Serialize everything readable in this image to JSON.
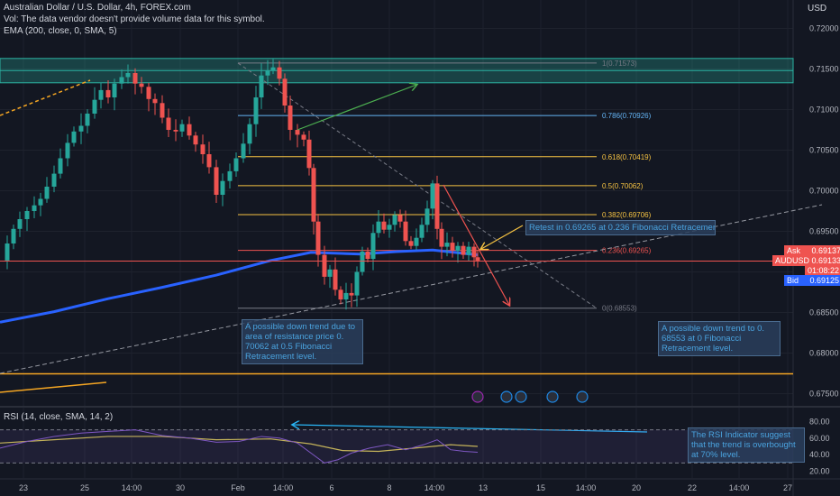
{
  "header": {
    "title": "Australian Dollar / U.S. Dollar, 4h, FOREX.com",
    "volume_note": "Vol: The data vendor doesn't provide volume data for this symbol.",
    "ema_legend": "EMA (200, close, 0, SMA, 5)",
    "currency": "USD"
  },
  "colors": {
    "background": "#131722",
    "up": "#26a69a",
    "down": "#ef5350",
    "ema": "#2962ff",
    "fib_gray": "#787b86",
    "fib_blue": "#64b5f6",
    "fib_yellow": "#f5c242",
    "rsi": "#c4b35a",
    "rsi_band": "#7e57c2",
    "zone": "#2bb3a3"
  },
  "price_axis": {
    "min": 0.6735,
    "max": 0.7235,
    "ticks": [
      "0.72000",
      "0.71500",
      "0.71000",
      "0.70500",
      "0.70000",
      "0.69500",
      "0.69000",
      "0.68500",
      "0.68000",
      "0.67500"
    ],
    "tick_values": [
      0.72,
      0.715,
      0.71,
      0.705,
      0.7,
      0.695,
      0.69,
      0.685,
      0.68,
      0.675
    ]
  },
  "price_tags": {
    "ask_label": "Ask",
    "ask_value": "0.69137",
    "symbol": "AUDUSD",
    "last_value": "0.69133",
    "countdown": "01:08:22",
    "bid_label": "Bid",
    "bid_value": "0.69125"
  },
  "time_axis": {
    "labels": [
      "23",
      "25",
      "14:00",
      "30",
      "Feb",
      "14:00",
      "6",
      "8",
      "14:00",
      "13",
      "15",
      "14:00",
      "20",
      "22",
      "14:00",
      "27"
    ]
  },
  "fibonacci": {
    "levels": [
      {
        "label": "1(0.71573)",
        "value": 0.71573,
        "color": "fib_gray"
      },
      {
        "label": "0.786(0.70926)",
        "value": 0.70926,
        "color": "fib_blue"
      },
      {
        "label": "0.618(0.70419)",
        "value": 0.70419,
        "color": "fib_yellow"
      },
      {
        "label": "0.5(0.70062)",
        "value": 0.70062,
        "color": "fib_yellow"
      },
      {
        "label": "0.382(0.69706)",
        "value": 0.69706,
        "color": "fib_yellow"
      },
      {
        "label": "0.236(0.69265)",
        "value": 0.69265,
        "color": "fib_red"
      },
      {
        "label": "0(0.68553)",
        "value": 0.68553,
        "color": "fib_gray"
      }
    ]
  },
  "annotations": {
    "left": "A possible down trend due to area of resistance price 0. 70062 at 0.5 Fibonacci Retracement level.",
    "right": "A possible down trend to 0. 68553 at 0 Fibonacci Retracement level.",
    "retest": "Retest in 0.69265 at 0.236 Fibonacci Retracement",
    "rsi": "The RSI Indicator suggest that the trend is overbought at 70% level."
  },
  "rsi": {
    "legend": "RSI (14, close, SMA, 14, 2)",
    "ticks": [
      "80.00",
      "60.00",
      "40.00",
      "20.00"
    ],
    "tick_values": [
      80,
      60,
      40,
      20
    ],
    "upper_band": 70,
    "lower_band": 30
  },
  "chart_data": {
    "type": "candlestick",
    "title": "Australian Dollar / U.S. Dollar, 4h, FOREX.com",
    "y_range": [
      0.6735,
      0.7235
    ],
    "ema_points": [
      [
        0,
        0.6838
      ],
      [
        60,
        0.6851
      ],
      [
        120,
        0.6867
      ],
      [
        180,
        0.6881
      ],
      [
        240,
        0.6896
      ],
      [
        300,
        0.6914
      ],
      [
        345,
        0.6924
      ],
      [
        400,
        0.6922
      ],
      [
        440,
        0.6925
      ],
      [
        480,
        0.6927
      ],
      [
        530,
        0.6921
      ]
    ],
    "close_path": [
      [
        0,
        0.6914
      ],
      [
        8,
        0.6935
      ],
      [
        15,
        0.6953
      ],
      [
        22,
        0.6965
      ],
      [
        30,
        0.6975
      ],
      [
        38,
        0.6982
      ],
      [
        45,
        0.699
      ],
      [
        52,
        0.7005
      ],
      [
        60,
        0.7021
      ],
      [
        67,
        0.704
      ],
      [
        75,
        0.7059
      ],
      [
        82,
        0.7073
      ],
      [
        90,
        0.708
      ],
      [
        97,
        0.7095
      ],
      [
        105,
        0.7112
      ],
      [
        112,
        0.7124
      ],
      [
        120,
        0.7115
      ],
      [
        127,
        0.7132
      ],
      [
        135,
        0.714
      ],
      [
        142,
        0.7145
      ],
      [
        150,
        0.7132
      ],
      [
        157,
        0.7128
      ],
      [
        165,
        0.7113
      ],
      [
        172,
        0.7108
      ],
      [
        180,
        0.709
      ],
      [
        187,
        0.7075
      ],
      [
        195,
        0.7073
      ],
      [
        202,
        0.7082
      ],
      [
        210,
        0.7068
      ],
      [
        217,
        0.7057
      ],
      [
        225,
        0.7045
      ],
      [
        232,
        0.7029
      ],
      [
        240,
        0.6995
      ],
      [
        247,
        0.7012
      ],
      [
        255,
        0.7024
      ],
      [
        262,
        0.704
      ],
      [
        270,
        0.7058
      ],
      [
        277,
        0.7082
      ],
      [
        284,
        0.7115
      ],
      [
        290,
        0.7142
      ],
      [
        297,
        0.7148
      ],
      [
        303,
        0.7152
      ],
      [
        310,
        0.7138
      ],
      [
        316,
        0.7105
      ],
      [
        322,
        0.7075
      ],
      [
        330,
        0.7069
      ],
      [
        337,
        0.7063
      ],
      [
        343,
        0.7028
      ],
      [
        348,
        0.6962
      ],
      [
        353,
        0.6921
      ],
      [
        360,
        0.6894
      ],
      [
        366,
        0.6903
      ],
      [
        372,
        0.6878
      ],
      [
        378,
        0.6866
      ],
      [
        384,
        0.6874
      ],
      [
        390,
        0.6871
      ],
      [
        396,
        0.69
      ],
      [
        402,
        0.6925
      ],
      [
        408,
        0.6916
      ],
      [
        414,
        0.6948
      ],
      [
        420,
        0.6962
      ],
      [
        426,
        0.6952
      ],
      [
        432,
        0.6958
      ],
      [
        438,
        0.697
      ],
      [
        444,
        0.6962
      ],
      [
        450,
        0.6938
      ],
      [
        456,
        0.6932
      ],
      [
        462,
        0.6942
      ],
      [
        468,
        0.6958
      ],
      [
        474,
        0.6978
      ],
      [
        480,
        0.7009
      ],
      [
        485,
        0.6953
      ],
      [
        490,
        0.6931
      ],
      [
        496,
        0.6936
      ],
      [
        502,
        0.6926
      ],
      [
        508,
        0.6932
      ],
      [
        514,
        0.6921
      ],
      [
        520,
        0.6931
      ],
      [
        526,
        0.6918
      ],
      [
        530,
        0.6914
      ]
    ],
    "rsi_points": [
      [
        0,
        48
      ],
      [
        30,
        56
      ],
      [
        60,
        62
      ],
      [
        90,
        66
      ],
      [
        120,
        68
      ],
      [
        150,
        70
      ],
      [
        180,
        63
      ],
      [
        210,
        60
      ],
      [
        240,
        55
      ],
      [
        265,
        56
      ],
      [
        290,
        62
      ],
      [
        310,
        60
      ],
      [
        330,
        54
      ],
      [
        345,
        42
      ],
      [
        360,
        30
      ],
      [
        375,
        34
      ],
      [
        390,
        42
      ],
      [
        410,
        48
      ],
      [
        430,
        52
      ],
      [
        450,
        46
      ],
      [
        470,
        52
      ],
      [
        485,
        58
      ],
      [
        500,
        46
      ],
      [
        515,
        44
      ],
      [
        530,
        43
      ]
    ],
    "rsi_signal": [
      [
        0,
        54
      ],
      [
        60,
        58
      ],
      [
        120,
        62
      ],
      [
        180,
        62
      ],
      [
        240,
        58
      ],
      [
        300,
        59
      ],
      [
        345,
        53
      ],
      [
        380,
        45
      ],
      [
        420,
        44
      ],
      [
        460,
        48
      ],
      [
        500,
        52
      ],
      [
        530,
        50
      ]
    ]
  }
}
